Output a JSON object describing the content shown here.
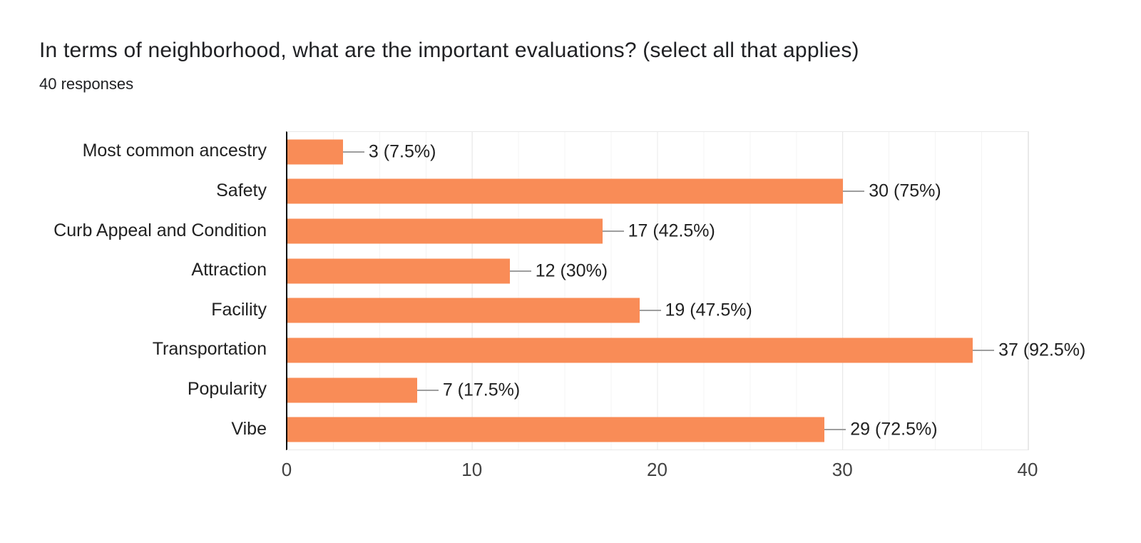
{
  "header": {
    "title": "In terms of neighborhood, what are the important evaluations? (select all that applies)",
    "responses": "40 responses"
  },
  "chart_data": {
    "type": "bar",
    "orientation": "horizontal",
    "title": "In terms of neighborhood, what are the important evaluations? (select all that applies)",
    "subtitle": "40 responses",
    "total_responses": 40,
    "categories": [
      "Most common ancestry",
      "Safety",
      "Curb Appeal and Condition",
      "Attraction",
      "Facility",
      "Transportation",
      "Popularity",
      "Vibe"
    ],
    "values": [
      3,
      30,
      17,
      12,
      19,
      37,
      7,
      29
    ],
    "percentages": [
      7.5,
      75,
      42.5,
      30,
      47.5,
      92.5,
      17.5,
      72.5
    ],
    "value_labels": [
      "3 (7.5%)",
      "30 (75%)",
      "17 (42.5%)",
      "12 (30%)",
      "19 (47.5%)",
      "37 (92.5%)",
      "7 (17.5%)",
      "29 (72.5%)"
    ],
    "xlim": [
      0,
      40
    ],
    "x_ticks": [
      0,
      10,
      20,
      30,
      40
    ],
    "grid": true,
    "minor_grid_step": 2.5,
    "legend_position": "none",
    "colors": {
      "bar": "#f98c57",
      "leader_line": "#9e9e9e",
      "text": "#212121",
      "axis_tick_text": "#424242",
      "axis_line": "#000000",
      "grid_major": "#e9e9e9",
      "grid_minor": "#f4f4f4",
      "plot_border": "#e8e8e8",
      "background": "#ffffff"
    }
  }
}
